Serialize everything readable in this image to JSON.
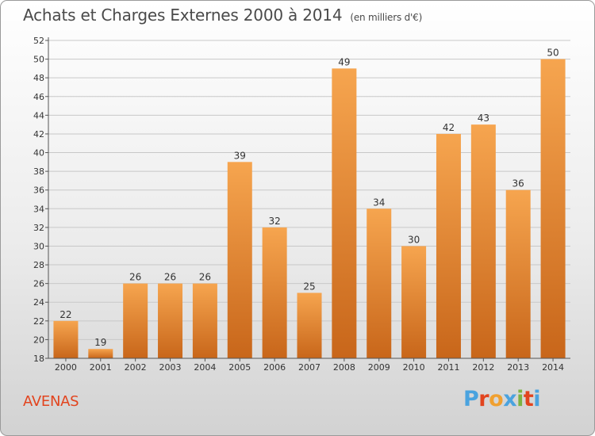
{
  "header": {
    "title": "Achats et Charges Externes 2000 à 2014",
    "subtitle": "(en milliers d'€)"
  },
  "footer": {
    "location": "AVENAS",
    "logo_text": "Proxiti",
    "logo_colors": [
      "#4aa3df",
      "#e2441e",
      "#f0a030",
      "#4aa3df",
      "#7cb342",
      "#e2441e",
      "#4aa3df"
    ]
  },
  "colors": {
    "bar_light": "#f6a54f",
    "bar_dark": "#c8661a",
    "grid": "#c8c8c8",
    "axis": "#555555",
    "text": "#333333"
  },
  "chart_data": {
    "type": "bar",
    "categories": [
      "2000",
      "2001",
      "2002",
      "2003",
      "2004",
      "2005",
      "2006",
      "2007",
      "2008",
      "2009",
      "2010",
      "2011",
      "2012",
      "2013",
      "2014"
    ],
    "values": [
      22,
      19,
      26,
      26,
      26,
      39,
      32,
      25,
      49,
      34,
      30,
      42,
      43,
      36,
      50
    ],
    "ylim": [
      18,
      52
    ],
    "yticks": [
      18,
      20,
      22,
      24,
      26,
      28,
      30,
      32,
      34,
      36,
      38,
      40,
      42,
      44,
      46,
      48,
      50,
      52
    ],
    "grid": true,
    "title": "Achats et Charges Externes 2000 à 2014",
    "xlabel": "",
    "ylabel": ""
  }
}
